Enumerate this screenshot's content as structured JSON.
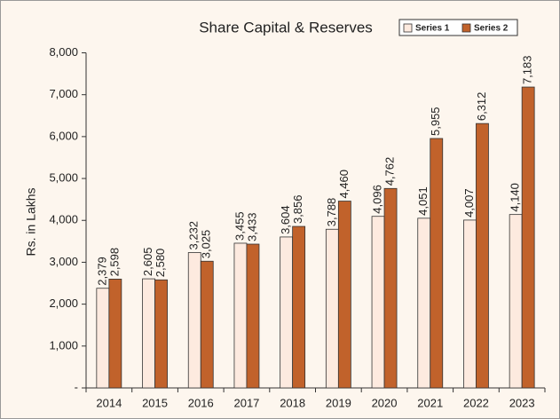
{
  "chart_data": {
    "type": "bar",
    "title": "Share Capital & Reserves",
    "y_label": "Rs. in Lakhs",
    "categories": [
      "2014",
      "2015",
      "2016",
      "2017",
      "2018",
      "2019",
      "2020",
      "2021",
      "2022",
      "2023"
    ],
    "series": [
      {
        "name": "Series 1",
        "color": "#fdeadf",
        "values": [
          2379,
          2605,
          3232,
          3455,
          3604,
          3788,
          4096,
          4051,
          4007,
          4140
        ],
        "value_labels": [
          "2,379",
          "2,605",
          "3,232",
          "3,455",
          "3,604",
          "3,788",
          "4,096",
          "4,051",
          "4,007",
          "4,140"
        ]
      },
      {
        "name": "Series 2",
        "color": "#c1622b",
        "values": [
          2598,
          2580,
          3025,
          3433,
          3856,
          4460,
          4762,
          5955,
          6312,
          7183
        ],
        "value_labels": [
          "2,598",
          "2,580",
          "3,025",
          "3,433",
          "3,856",
          "4,460",
          "4,762",
          "5,955",
          "6,312",
          "7,183"
        ]
      }
    ],
    "ylim": [
      0,
      8000
    ],
    "yticks": [
      {
        "value": 0,
        "label": "-"
      },
      {
        "value": 1000,
        "label": "1,000"
      },
      {
        "value": 2000,
        "label": "2,000"
      },
      {
        "value": 3000,
        "label": "3,000"
      },
      {
        "value": 4000,
        "label": "4,000"
      },
      {
        "value": 5000,
        "label": "5,000"
      },
      {
        "value": 6000,
        "label": "6,000"
      },
      {
        "value": 7000,
        "label": "7,000"
      },
      {
        "value": 8000,
        "label": "8,000"
      }
    ],
    "legend": "top-right"
  }
}
